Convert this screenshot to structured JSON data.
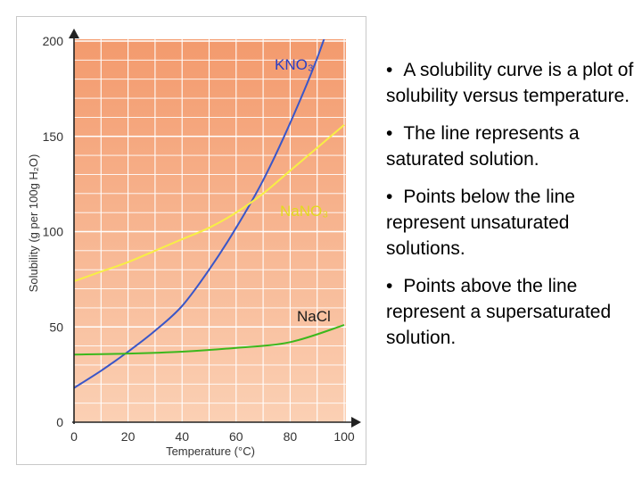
{
  "chart_data": {
    "type": "line",
    "xlabel": "Temperature (°C)",
    "ylabel": "Solubility (g per 100g H₂O)",
    "xlim": [
      0,
      100
    ],
    "ylim": [
      0,
      200
    ],
    "x_ticks": [
      "0",
      "20",
      "40",
      "60",
      "80",
      "100"
    ],
    "y_ticks": [
      "0",
      "50",
      "100",
      "150",
      "200"
    ],
    "grid": true,
    "background_color": "#f5a77e",
    "series": [
      {
        "name": "KNO₃",
        "color": "#3a56c8",
        "x": [
          0,
          10,
          20,
          30,
          40,
          50,
          60,
          70,
          80,
          90,
          100
        ],
        "y": [
          18,
          27,
          37,
          48,
          61,
          80,
          102,
          127,
          157,
          191,
          232
        ]
      },
      {
        "name": "NaNO₃",
        "color": "#f7ef45",
        "x": [
          0,
          10,
          20,
          30,
          40,
          50,
          60,
          70,
          80,
          90,
          100
        ],
        "y": [
          74,
          79,
          84,
          90,
          96,
          102,
          110,
          120,
          132,
          144,
          156
        ]
      },
      {
        "name": "NaCl",
        "color": "#3cb81c",
        "x": [
          0,
          20,
          40,
          60,
          80,
          100
        ],
        "y": [
          35.5,
          36,
          37,
          39,
          42,
          51
        ]
      }
    ]
  },
  "bullets": [
    "A solubility curve is a plot of solubility versus temperature.",
    "The line represents a saturated solution.",
    "Points below the line represent unsaturated solutions.",
    "Points above the line represent a supersaturated solution."
  ]
}
